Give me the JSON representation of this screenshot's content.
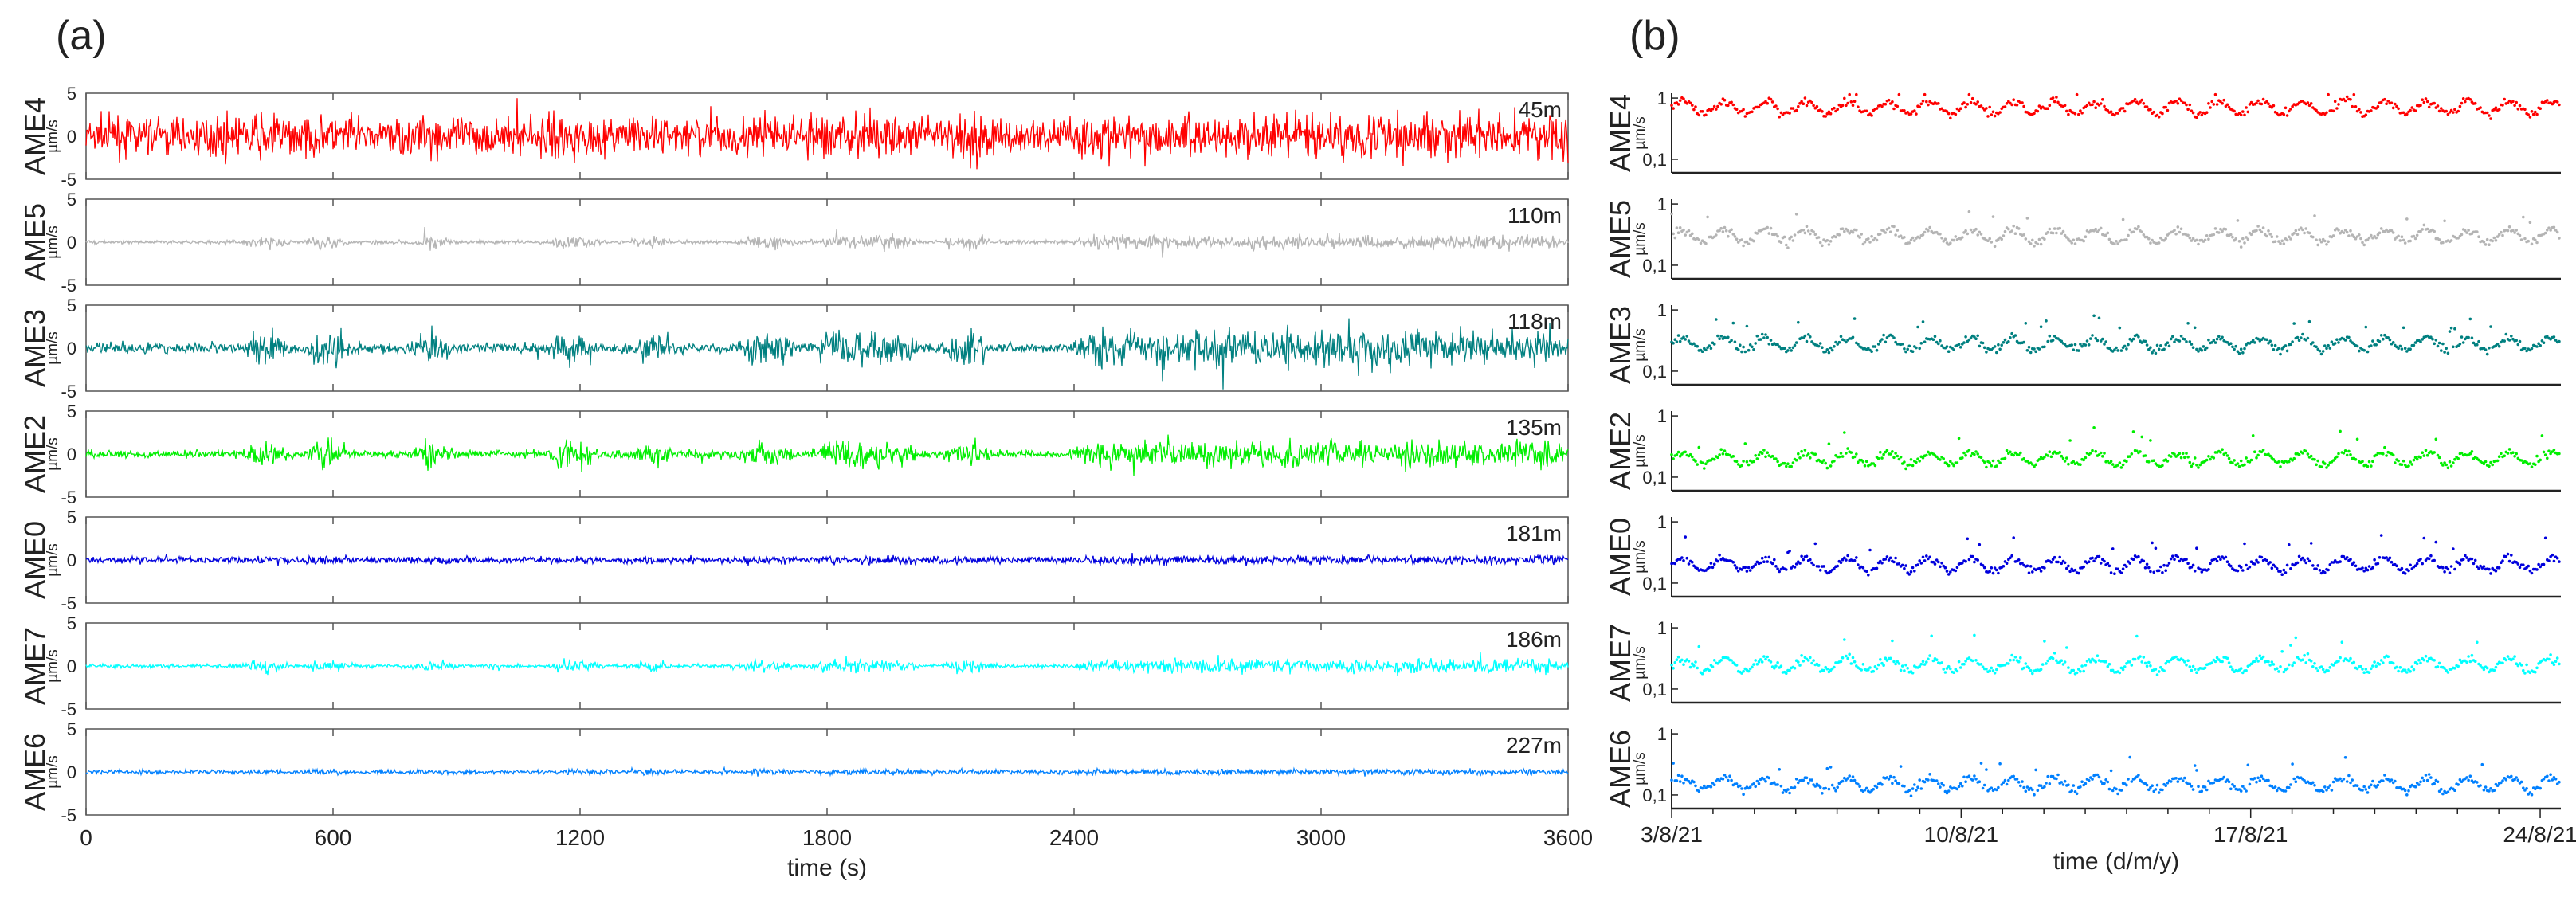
{
  "panels": {
    "a": {
      "label": "(a)"
    },
    "b": {
      "label": "(b)"
    }
  },
  "colors": {
    "AME4": "#ff0000",
    "AME5": "#b4b4b4",
    "AME3": "#008080",
    "AME2": "#00ee00",
    "AME0": "#0000dd",
    "AME7": "#00ffff",
    "AME6": "#0080ff"
  },
  "chart_data": [
    {
      "type": "line",
      "title": "(a)",
      "xlabel": "time (s)",
      "ylabel": "µm/s",
      "xlim": [
        0,
        3600
      ],
      "ylim": [
        -5,
        5
      ],
      "x_ticks": [
        0,
        600,
        1200,
        1800,
        2400,
        3000,
        3600
      ],
      "x_tick_labels": [
        "0",
        "600",
        "1200",
        "1800",
        "2400",
        "3000",
        "3600"
      ],
      "y_ticks": [
        -5,
        0,
        5
      ],
      "y_tick_labels": [
        "-5",
        "0",
        "5"
      ],
      "series": [
        {
          "name": "AME4",
          "depth": "45m",
          "amplitude": 4.6,
          "pattern": "sustained"
        },
        {
          "name": "AME5",
          "depth": "110m",
          "amplitude": 1.4,
          "pattern": "bursts"
        },
        {
          "name": "AME3",
          "depth": "118m",
          "amplitude": 3.8,
          "pattern": "bursts"
        },
        {
          "name": "AME2",
          "depth": "135m",
          "amplitude": 2.8,
          "pattern": "bursts"
        },
        {
          "name": "AME0",
          "depth": "181m",
          "amplitude": 0.9,
          "pattern": "low"
        },
        {
          "name": "AME7",
          "depth": "186m",
          "amplitude": 1.4,
          "pattern": "bursts"
        },
        {
          "name": "AME6",
          "depth": "227m",
          "amplitude": 0.6,
          "pattern": "low"
        }
      ]
    },
    {
      "type": "scatter",
      "title": "(b)",
      "xlabel": "time (d/m/y)",
      "ylabel": "µm/s",
      "y_scale": "log",
      "ylim": [
        0.06,
        1.2
      ],
      "x_days": [
        0,
        21.5
      ],
      "x_ticks": [
        0,
        7,
        14,
        21
      ],
      "x_tick_labels": [
        "3/8/21",
        "10/8/21",
        "17/8/21",
        "24/8/21"
      ],
      "y_tick_labels": [
        "0,1",
        "1"
      ],
      "series": [
        {
          "name": "AME4",
          "median": 0.7
        },
        {
          "name": "AME5",
          "median": 0.3
        },
        {
          "name": "AME3",
          "median": 0.28
        },
        {
          "name": "AME2",
          "median": 0.2
        },
        {
          "name": "AME0",
          "median": 0.2
        },
        {
          "name": "AME7",
          "median": 0.25
        },
        {
          "name": "AME6",
          "median": 0.15
        }
      ]
    }
  ]
}
